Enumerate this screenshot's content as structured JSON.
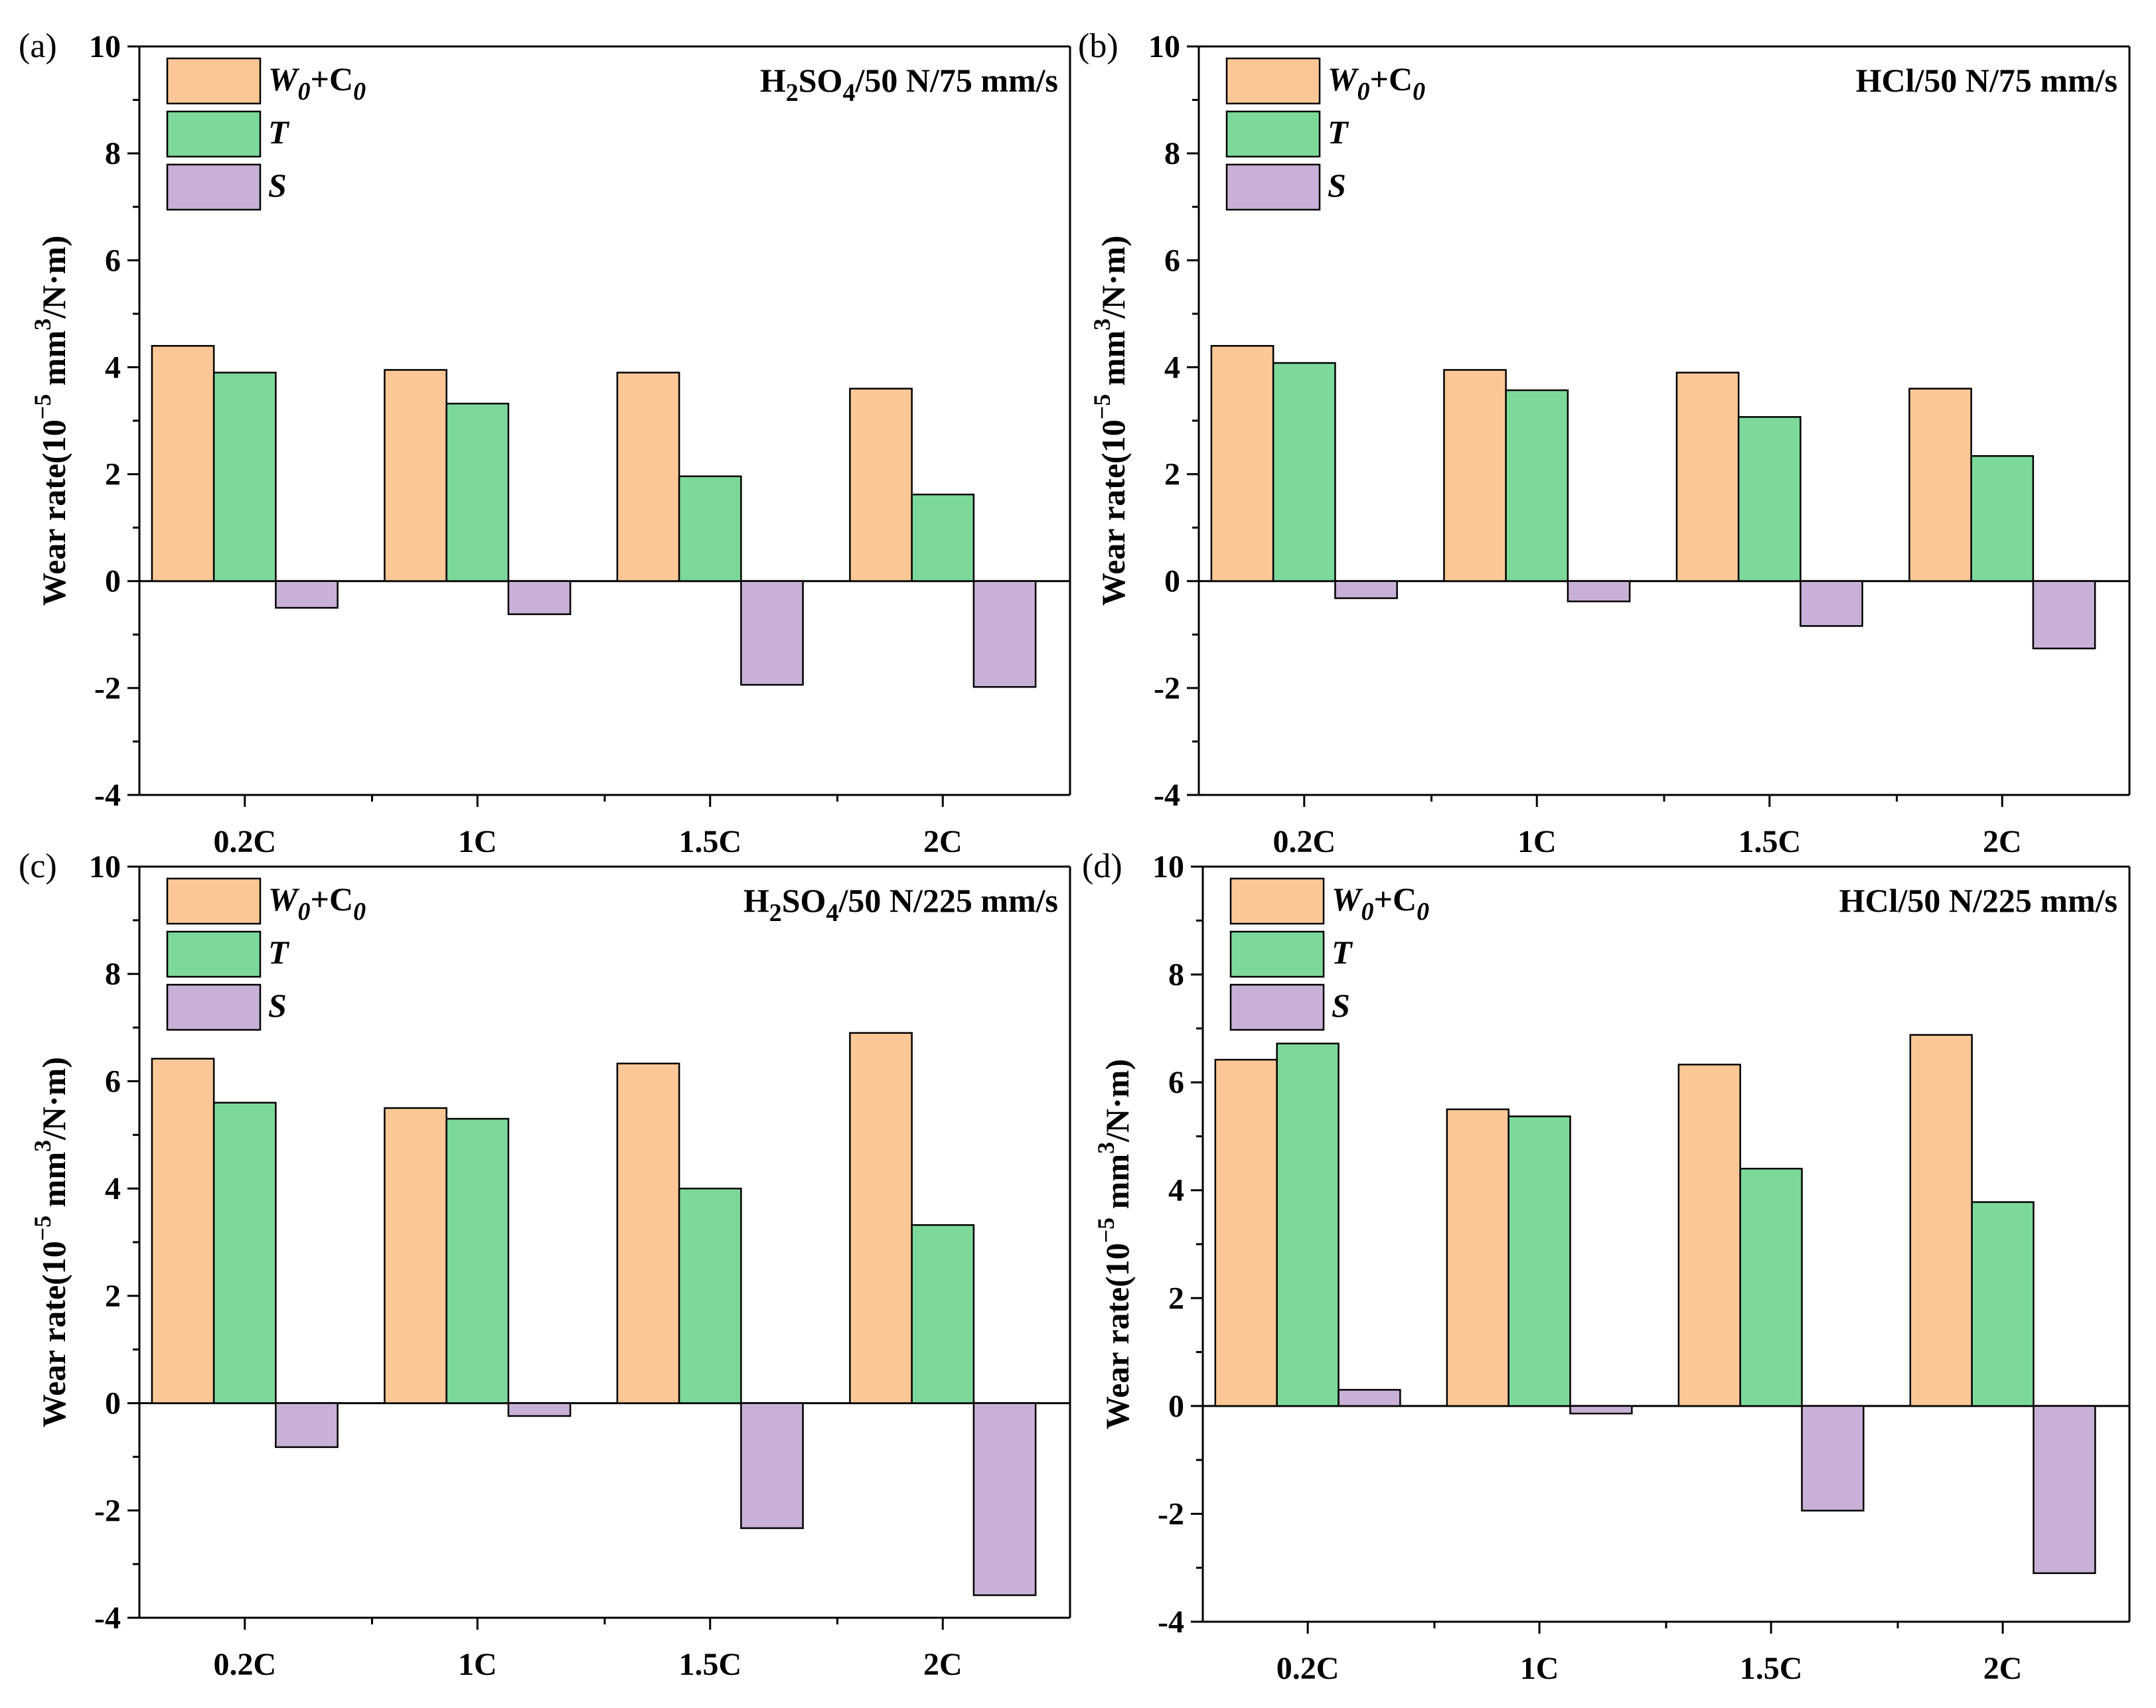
{
  "figure": {
    "colors": {
      "w0c0": "#FCC796",
      "t": "#7DD99A",
      "s": "#C8B0D6",
      "stroke": "#000000"
    },
    "legend": [
      {
        "key": "w0c0",
        "label": "W0+C0",
        "label_parts": [
          "W",
          "0",
          "+C",
          "0"
        ]
      },
      {
        "key": "t",
        "label": "T"
      },
      {
        "key": "s",
        "label": "S"
      }
    ]
  },
  "chart_data": [
    {
      "type": "bar",
      "panel_label": "(a)",
      "condition": "H2SO4/50 N/75 mm/s",
      "condition_parts": [
        "H",
        "2",
        "SO",
        "4",
        "/50 N/75 mm/s"
      ],
      "ylabel": "Wear rate(10-5 mm3/N·m)",
      "ylabel_parts": [
        "Wear rate(10",
        "−5",
        " mm",
        "3",
        "/N·m)"
      ],
      "ylim": [
        -4,
        10
      ],
      "yticks": [
        "-4",
        "-2",
        "0",
        "2",
        "4",
        "6",
        "8",
        "10"
      ],
      "categories": [
        "0.2C",
        "1C",
        "1.5C",
        "2C"
      ],
      "series": [
        {
          "name": "W0+C0",
          "key": "w0c0",
          "values": [
            4.4,
            3.95,
            3.9,
            3.6
          ]
        },
        {
          "name": "T",
          "key": "t",
          "values": [
            3.9,
            3.32,
            1.96,
            1.62
          ]
        },
        {
          "name": "S",
          "key": "s",
          "values": [
            -0.5,
            -0.62,
            -1.94,
            -1.98
          ]
        }
      ]
    },
    {
      "type": "bar",
      "panel_label": "(b)",
      "condition": "HCl/50 N/75 mm/s",
      "ylabel": "Wear rate(10-5 mm3/N·m)",
      "ylabel_parts": [
        "Wear rate(10",
        "−5",
        " mm",
        "3",
        "/N·m)"
      ],
      "ylim": [
        -4,
        10
      ],
      "yticks": [
        "-4",
        "-2",
        "0",
        "2",
        "4",
        "6",
        "8",
        "10"
      ],
      "categories": [
        "0.2C",
        "1C",
        "1.5C",
        "2C"
      ],
      "series": [
        {
          "name": "W0+C0",
          "key": "w0c0",
          "values": [
            4.4,
            3.95,
            3.9,
            3.6
          ]
        },
        {
          "name": "T",
          "key": "t",
          "values": [
            4.08,
            3.57,
            3.07,
            2.34
          ]
        },
        {
          "name": "S",
          "key": "s",
          "values": [
            -0.32,
            -0.38,
            -0.84,
            -1.26
          ]
        }
      ]
    },
    {
      "type": "bar",
      "panel_label": "(c)",
      "condition": "H2SO4/50 N/225 mm/s",
      "condition_parts": [
        "H",
        "2",
        "SO",
        "4",
        "/50 N/225 mm/s"
      ],
      "ylabel": "Wear rate(10-5 mm3/N·m)",
      "ylabel_parts": [
        "Wear rate(10",
        "−5",
        " mm",
        "3",
        "/N·m)"
      ],
      "ylim": [
        -4,
        10
      ],
      "yticks": [
        "-4",
        "-2",
        "0",
        "2",
        "4",
        "6",
        "8",
        "10"
      ],
      "categories": [
        "0.2C",
        "1C",
        "1.5C",
        "2C"
      ],
      "series": [
        {
          "name": "W0+C0",
          "key": "w0c0",
          "values": [
            6.42,
            5.5,
            6.33,
            6.9
          ]
        },
        {
          "name": "T",
          "key": "t",
          "values": [
            5.6,
            5.3,
            4.0,
            3.32
          ]
        },
        {
          "name": "S",
          "key": "s",
          "values": [
            -0.82,
            -0.24,
            -2.33,
            -3.58
          ]
        }
      ]
    },
    {
      "type": "bar",
      "panel_label": "(d)",
      "condition": "HCl/50 N/225 mm/s",
      "ylabel": "Wear rate(10-5 mm3/N·m)",
      "ylabel_parts": [
        "Wear rate(10",
        "−5",
        " mm",
        "3",
        "/N·m)"
      ],
      "ylim": [
        -4,
        10
      ],
      "yticks": [
        "-4",
        "-2",
        "0",
        "2",
        "4",
        "6",
        "8",
        "10"
      ],
      "categories": [
        "0.2C",
        "1C",
        "1.5C",
        "2C"
      ],
      "series": [
        {
          "name": "W0+C0",
          "key": "w0c0",
          "values": [
            6.42,
            5.5,
            6.33,
            6.88
          ]
        },
        {
          "name": "T",
          "key": "t",
          "values": [
            6.72,
            5.37,
            4.4,
            3.78
          ]
        },
        {
          "name": "S",
          "key": "s",
          "values": [
            0.3,
            -0.14,
            -1.94,
            -3.1
          ]
        }
      ]
    }
  ]
}
